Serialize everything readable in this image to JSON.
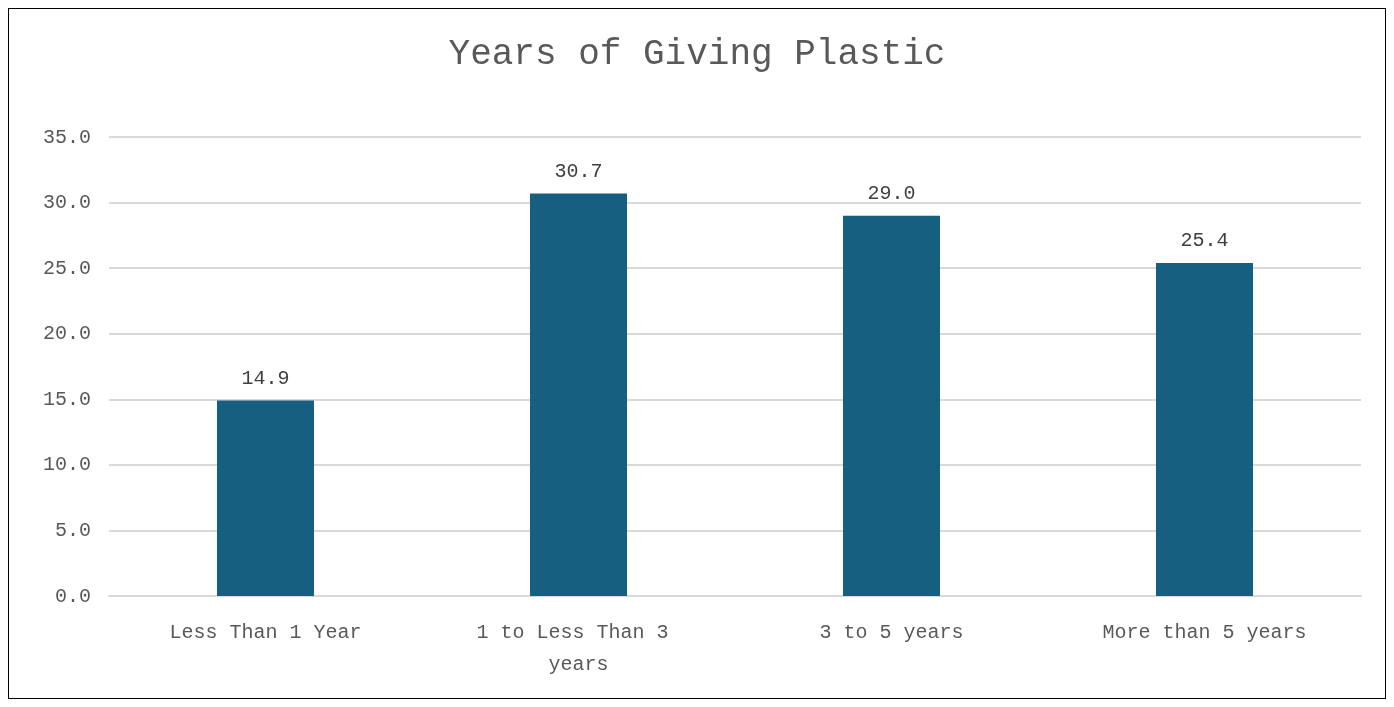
{
  "chart_data": {
    "type": "bar",
    "title": "Years of Giving Plastic",
    "categories": [
      "Less Than 1 Year",
      "1 to Less Than 3 years",
      "3 to 5 years",
      "More than 5 years"
    ],
    "values": [
      14.9,
      30.7,
      29.0,
      25.4
    ],
    "value_labels": [
      "14.9",
      "30.7",
      "29.0",
      "25.4"
    ],
    "color": "#165f80",
    "ylim": [
      0,
      35
    ],
    "yticks": [
      {
        "value": 0,
        "label": "0.0"
      },
      {
        "value": 5,
        "label": "5.0"
      },
      {
        "value": 10,
        "label": "10.0"
      },
      {
        "value": 15,
        "label": "15.0"
      },
      {
        "value": 20,
        "label": "20.0"
      },
      {
        "value": 25,
        "label": "25.0"
      },
      {
        "value": 30,
        "label": "30.0"
      },
      {
        "value": 35,
        "label": "35.0"
      }
    ],
    "grid": "y"
  }
}
